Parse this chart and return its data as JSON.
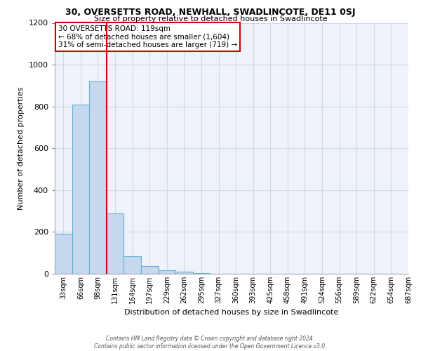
{
  "title": "30, OVERSETTS ROAD, NEWHALL, SWADLINCOTE, DE11 0SJ",
  "subtitle": "Size of property relative to detached houses in Swadlincote",
  "xlabel": "Distribution of detached houses by size in Swadlincote",
  "ylabel": "Number of detached properties",
  "bin_labels": [
    "33sqm",
    "66sqm",
    "98sqm",
    "131sqm",
    "164sqm",
    "197sqm",
    "229sqm",
    "262sqm",
    "295sqm",
    "327sqm",
    "360sqm",
    "393sqm",
    "425sqm",
    "458sqm",
    "491sqm",
    "524sqm",
    "556sqm",
    "589sqm",
    "622sqm",
    "654sqm",
    "687sqm"
  ],
  "bar_heights": [
    190,
    810,
    920,
    290,
    85,
    38,
    18,
    10,
    5,
    0,
    0,
    0,
    0,
    0,
    0,
    0,
    0,
    0,
    0,
    0
  ],
  "bar_color": "#c5d8ed",
  "bar_edge_color": "#6aaed6",
  "ylim": [
    0,
    1200
  ],
  "yticks": [
    0,
    200,
    400,
    600,
    800,
    1000,
    1200
  ],
  "red_line_bin": 3,
  "annotation_title": "30 OVERSETTS ROAD: 119sqm",
  "annotation_line1": "← 68% of detached houses are smaller (1,604)",
  "annotation_line2": "31% of semi-detached houses are larger (719) →",
  "annotation_box_color": "#ffffff",
  "annotation_box_edge_color": "#cc0000",
  "footer_line1": "Contains HM Land Registry data © Crown copyright and database right 2024.",
  "footer_line2": "Contains public sector information licensed under the Open Government Licence v3.0.",
  "background_color": "#ffffff",
  "grid_color": "#d0d8e8"
}
